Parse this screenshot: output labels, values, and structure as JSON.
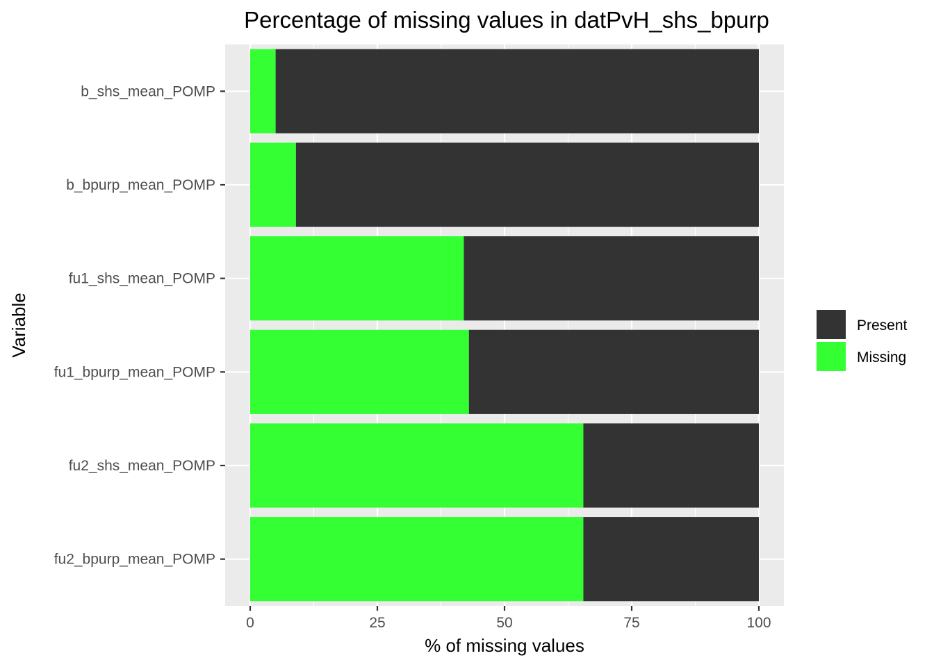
{
  "chart_data": {
    "type": "bar",
    "orientation": "horizontal",
    "stacked": true,
    "title": "Percentage of missing values in datPvH_shs_bpurp",
    "xlabel": "% of missing values",
    "ylabel": "Variable",
    "xlim": [
      0,
      100
    ],
    "xticks": [
      "0",
      "25",
      "50",
      "75",
      "100"
    ],
    "categories": [
      "b_shs_mean_POMP",
      "b_bpurp_mean_POMP",
      "fu1_shs_mean_POMP",
      "fu1_bpurp_mean_POMP",
      "fu2_shs_mean_POMP",
      "fu2_bpurp_mean_POMP"
    ],
    "series": [
      {
        "name": "Missing",
        "color": "#33ff33",
        "values": [
          5,
          9,
          42,
          43,
          65.5,
          65.5
        ]
      },
      {
        "name": "Present",
        "color": "#333333",
        "values": [
          95,
          91,
          58,
          57,
          34.5,
          34.5
        ]
      }
    ],
    "legend": {
      "position": "right",
      "entries": [
        "Present",
        "Missing"
      ]
    },
    "grid": true,
    "panel_background": "#ebebeb"
  }
}
